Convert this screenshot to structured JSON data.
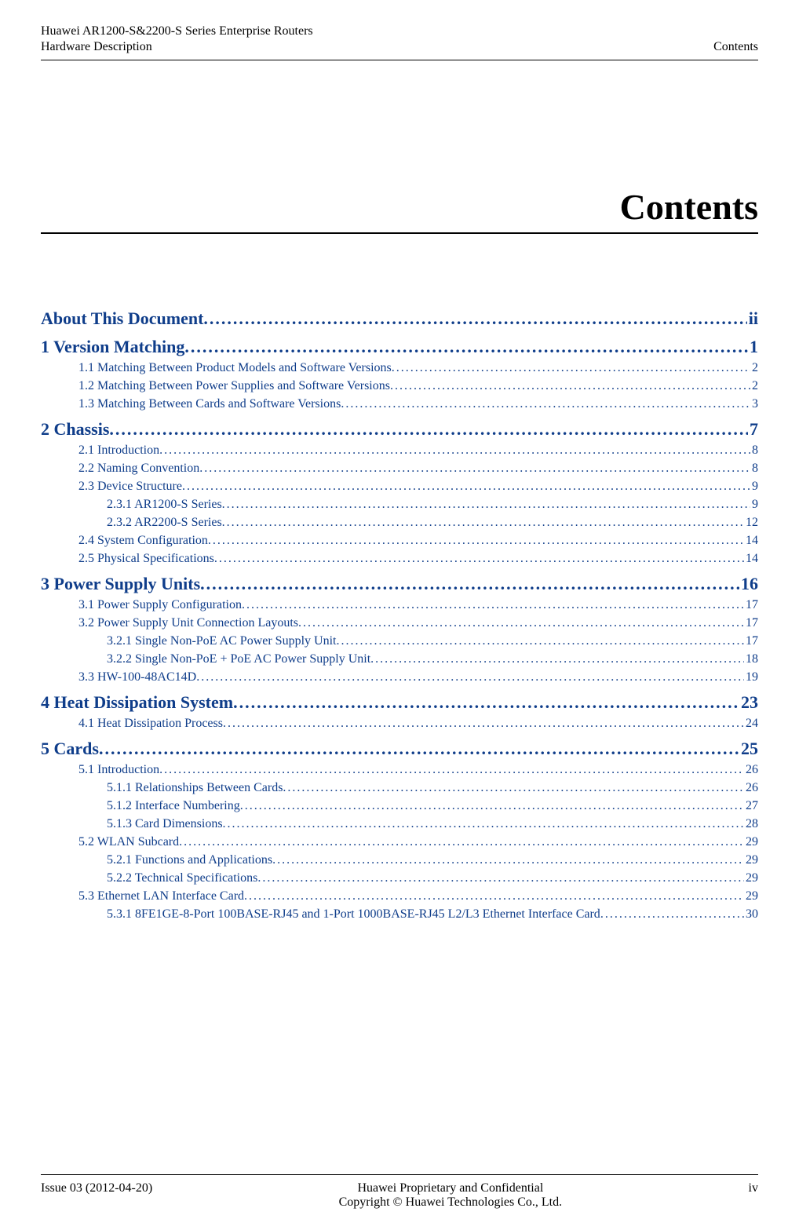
{
  "colors": {
    "link_color": "#0f3d8a",
    "text_color": "#000000",
    "background": "#ffffff"
  },
  "typography": {
    "body_font": "Times New Roman",
    "title_fontsize_pt": 34,
    "chapter_fontsize_pt": 16,
    "entry_fontsize_pt": 12
  },
  "header": {
    "left_line1": "Huawei AR1200-S&2200-S Series Enterprise Routers",
    "left_line2": "Hardware Description",
    "right": "Contents"
  },
  "title": "Contents",
  "toc": [
    {
      "level": 0,
      "label": "About This Document",
      "page": "ii"
    },
    {
      "level": 0,
      "label": "1 Version Matching",
      "page": "1"
    },
    {
      "level": 1,
      "label": "1.1 Matching Between Product Models and Software Versions",
      "page": "2"
    },
    {
      "level": 1,
      "label": "1.2 Matching Between Power Supplies and Software Versions",
      "page": "2"
    },
    {
      "level": 1,
      "label": "1.3 Matching Between Cards and Software Versions",
      "page": "3"
    },
    {
      "level": 0,
      "label": "2 Chassis",
      "page": "7"
    },
    {
      "level": 1,
      "label": "2.1 Introduction",
      "page": "8"
    },
    {
      "level": 1,
      "label": "2.2 Naming Convention",
      "page": "8"
    },
    {
      "level": 1,
      "label": "2.3 Device Structure",
      "page": "9"
    },
    {
      "level": 2,
      "label": "2.3.1 AR1200-S Series",
      "page": "9"
    },
    {
      "level": 2,
      "label": "2.3.2 AR2200-S Series",
      "page": "12"
    },
    {
      "level": 1,
      "label": "2.4 System Configuration",
      "page": "14"
    },
    {
      "level": 1,
      "label": "2.5 Physical Specifications",
      "page": "14"
    },
    {
      "level": 0,
      "label": "3 Power Supply Units",
      "page": "16"
    },
    {
      "level": 1,
      "label": "3.1 Power Supply Configuration",
      "page": "17"
    },
    {
      "level": 1,
      "label": "3.2 Power Supply Unit Connection Layouts",
      "page": "17"
    },
    {
      "level": 2,
      "label": "3.2.1 Single Non-PoE AC Power Supply Unit",
      "page": "17"
    },
    {
      "level": 2,
      "label": "3.2.2 Single Non-PoE + PoE AC Power Supply Unit",
      "page": "18"
    },
    {
      "level": 1,
      "label": "3.3 HW-100-48AC14D",
      "page": "19"
    },
    {
      "level": 0,
      "label": "4 Heat Dissipation System",
      "page": "23"
    },
    {
      "level": 1,
      "label": "4.1 Heat Dissipation Process",
      "page": "24"
    },
    {
      "level": 0,
      "label": "5 Cards",
      "page": "25"
    },
    {
      "level": 1,
      "label": "5.1 Introduction",
      "page": "26"
    },
    {
      "level": 2,
      "label": "5.1.1 Relationships Between Cards",
      "page": "26"
    },
    {
      "level": 2,
      "label": "5.1.2 Interface Numbering",
      "page": "27"
    },
    {
      "level": 2,
      "label": "5.1.3 Card Dimensions",
      "page": "28"
    },
    {
      "level": 1,
      "label": "5.2 WLAN Subcard",
      "page": "29"
    },
    {
      "level": 2,
      "label": "5.2.1 Functions and Applications",
      "page": "29"
    },
    {
      "level": 2,
      "label": "5.2.2 Technical Specifications",
      "page": "29"
    },
    {
      "level": 1,
      "label": "5.3 Ethernet LAN Interface Card",
      "page": "29"
    },
    {
      "level": 2,
      "label": "5.3.1 8FE1GE-8-Port 100BASE-RJ45 and 1-Port 1000BASE-RJ45 L2/L3 Ethernet Interface Card",
      "page": "30"
    }
  ],
  "footer": {
    "left": "Issue 03 (2012-04-20)",
    "center_line1": "Huawei Proprietary and Confidential",
    "center_line2": "Copyright © Huawei Technologies Co., Ltd.",
    "right": "iv"
  }
}
